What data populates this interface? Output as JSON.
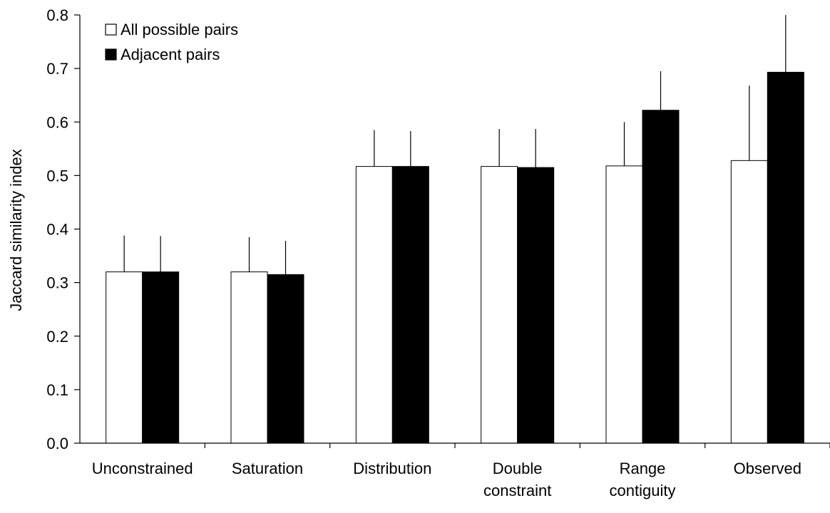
{
  "chart_data": {
    "type": "bar",
    "title": "",
    "xlabel": "",
    "ylabel": "Jaccard similarity index",
    "ylim": [
      0.0,
      0.8
    ],
    "yticks": [
      "0.0",
      "0.1",
      "0.2",
      "0.3",
      "0.4",
      "0.5",
      "0.6",
      "0.7",
      "0.8"
    ],
    "grid": false,
    "legend_position": "top-left",
    "categories": [
      [
        "Unconstrained"
      ],
      [
        "Saturation"
      ],
      [
        "Distribution"
      ],
      [
        "Double",
        "constraint"
      ],
      [
        "Range",
        "contiguity"
      ],
      [
        "Observed"
      ]
    ],
    "series": [
      {
        "name": "All possible pairs",
        "color": "#ffffff",
        "values": [
          0.32,
          0.32,
          0.517,
          0.517,
          0.518,
          0.528
        ],
        "error": [
          0.068,
          0.065,
          0.068,
          0.07,
          0.082,
          0.14
        ]
      },
      {
        "name": "Adjacent pairs",
        "color": "#000000",
        "values": [
          0.32,
          0.315,
          0.517,
          0.515,
          0.622,
          0.693
        ],
        "error": [
          0.067,
          0.063,
          0.066,
          0.072,
          0.073,
          0.107
        ]
      }
    ]
  }
}
